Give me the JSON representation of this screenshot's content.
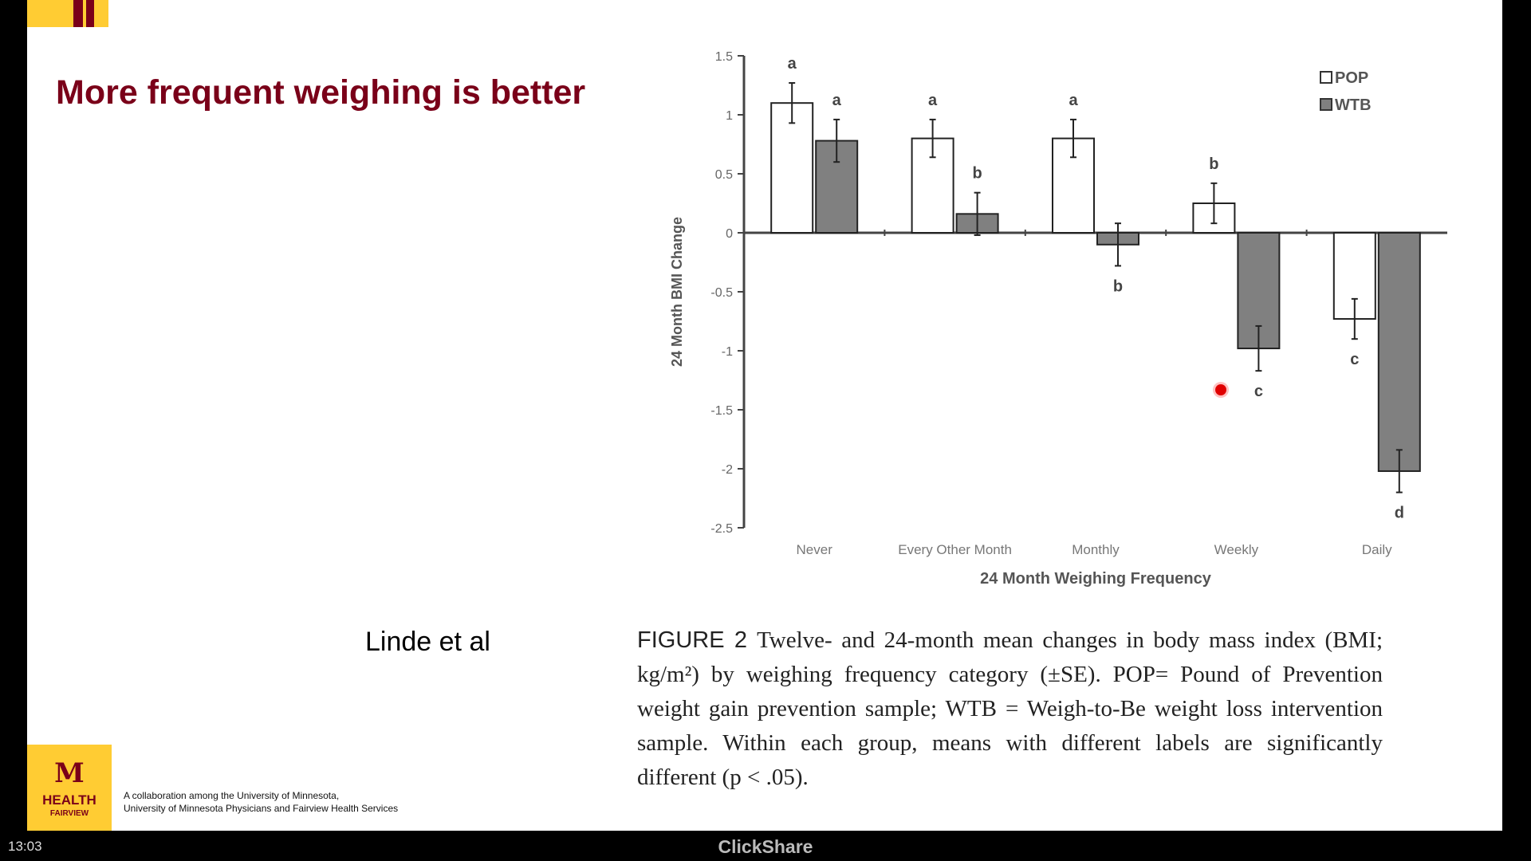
{
  "slide": {
    "title": "More frequent weighing is better",
    "citation": "Linde et al",
    "caption_label": "FIGURE 2",
    "caption_text": "Twelve- and 24-month mean changes in body mass index (BMI; kg/m²) by weighing frequency category (±SE). POP= Pound of Prevention weight gain prevention sample; WTB = Weigh-to-Be weight loss intervention sample. Within each group, means with different labels are significantly different (p < .05).",
    "logo": {
      "mark": "M",
      "name": "HEALTH",
      "sub": "FAIRVIEW"
    },
    "collab_line1": "A collaboration among the University of Minnesota,",
    "collab_line2": "University of Minnesota Physicians and Fairview Health Services",
    "accent_colors": {
      "maroon": "#7a0019",
      "gold": "#ffcc33"
    }
  },
  "bottom_bar": {
    "clock": "13:03",
    "label": "ClickShare"
  },
  "chart_data": {
    "type": "bar",
    "title": "",
    "xlabel": "24 Month Weighing Frequency",
    "ylabel": "24 Month BMI Change",
    "ylim": [
      -2.5,
      1.5
    ],
    "yticks": [
      1.5,
      1,
      0.5,
      0,
      -0.5,
      -1,
      -1.5,
      -2,
      -2.5
    ],
    "ytick_labels": [
      "1.5",
      "1",
      "0.5",
      "0",
      "-0.5",
      "-1",
      "-1.5",
      "-2",
      "-2.5"
    ],
    "categories": [
      "Never",
      "Every Other Month",
      "Monthly",
      "Weekly",
      "Daily"
    ],
    "legend_position": "top-right",
    "grid": false,
    "series": [
      {
        "name": "POP",
        "color": "#ffffff",
        "values": [
          1.1,
          0.8,
          0.8,
          0.25,
          -0.73
        ],
        "errors": [
          0.17,
          0.16,
          0.16,
          0.17,
          0.17
        ],
        "labels": [
          "a",
          "a",
          "a",
          "b",
          "c"
        ]
      },
      {
        "name": "WTB",
        "color": "#808080",
        "values": [
          0.78,
          0.16,
          -0.1,
          -0.98,
          -2.02
        ],
        "errors": [
          0.18,
          0.18,
          0.18,
          0.19,
          0.18
        ],
        "labels": [
          "a",
          "b",
          "b",
          "c",
          "d"
        ]
      }
    ]
  }
}
